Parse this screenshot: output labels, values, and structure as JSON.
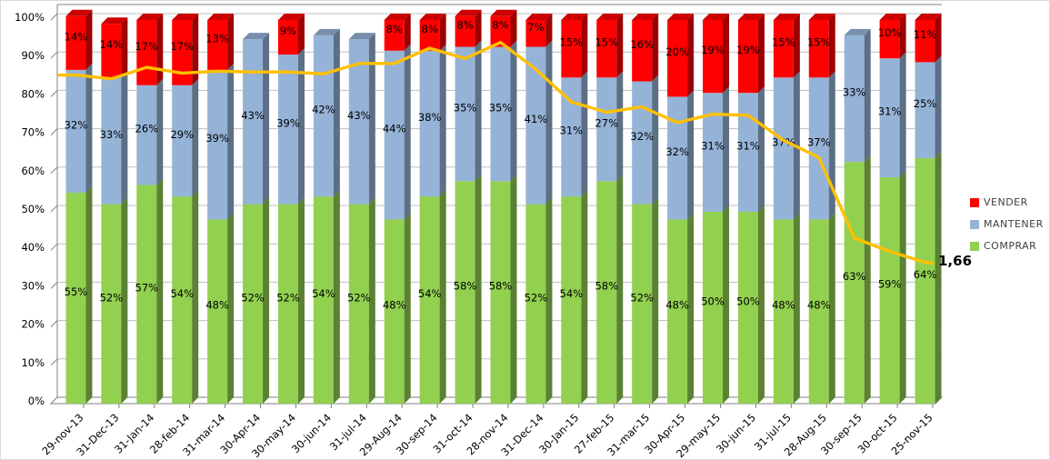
{
  "chart_data": {
    "type": "bar",
    "subtype": "stacked-percent-columns-with-line-overlay",
    "title": "",
    "xlabel": "",
    "ylabel": "",
    "ylim": [
      0,
      100
    ],
    "grid": true,
    "legend_position": "right",
    "yticks": [
      "0%",
      "10%",
      "20%",
      "30%",
      "40%",
      "50%",
      "60%",
      "70%",
      "80%",
      "90%",
      "100%"
    ],
    "categories": [
      "29-nov-13",
      "31-Dec-13",
      "31-Jan-14",
      "28-feb-14",
      "31-mar-14",
      "30-Apr-14",
      "30-may-14",
      "30-jun-14",
      "31-jul-14",
      "29-Aug-14",
      "30-sep-14",
      "31-oct-14",
      "28-nov-14",
      "31-Dec-14",
      "30-Jan-15",
      "27-feb-15",
      "31-mar-15",
      "30-Apr-15",
      "29-may-15",
      "30-jun-15",
      "31-jul-15",
      "28-Aug-15",
      "30-sep-15",
      "30-oct-15",
      "25-nov-15"
    ],
    "series": [
      {
        "name": "COMPRAR",
        "color": "#92D050",
        "values": [
          55,
          52,
          57,
          54,
          48,
          52,
          52,
          54,
          52,
          48,
          54,
          58,
          58,
          52,
          54,
          58,
          52,
          48,
          50,
          50,
          48,
          48,
          63,
          59,
          64
        ]
      },
      {
        "name": "MANTENER",
        "color": "#95B3D7",
        "values": [
          32,
          33,
          26,
          29,
          39,
          43,
          39,
          42,
          43,
          44,
          38,
          35,
          35,
          41,
          31,
          27,
          32,
          32,
          31,
          31,
          37,
          37,
          33,
          31,
          25
        ]
      },
      {
        "name": "VENDER",
        "color": "#FF0000",
        "values": [
          14,
          14,
          17,
          17,
          13,
          null,
          9,
          null,
          null,
          8,
          8,
          8,
          8,
          7,
          15,
          15,
          16,
          20,
          19,
          19,
          15,
          15,
          null,
          10,
          11
        ]
      }
    ],
    "line": {
      "name": "consensus-line",
      "color": "#FFC000",
      "end_label": "1,66",
      "values_pct_axis": [
        84,
        83,
        86,
        84.5,
        85,
        84.8,
        84.8,
        84.3,
        87,
        87,
        91,
        88.3,
        92.5,
        85.5,
        77,
        74.3,
        75.7,
        71.6,
        73.8,
        73.5,
        67,
        62.5,
        41.5,
        38,
        35.2
      ]
    }
  },
  "legend": {
    "items": [
      {
        "label": "VENDER",
        "color": "#FF0000"
      },
      {
        "label": "MANTENER",
        "color": "#95B3D7"
      },
      {
        "label": "COMPRAR",
        "color": "#92D050"
      }
    ]
  },
  "annotations": {
    "line_end_label": "1,66"
  },
  "palette": {
    "gridline": "#BFBFBF",
    "axis": "#808080",
    "label_text": "#000000",
    "axis_text": "#000000"
  }
}
